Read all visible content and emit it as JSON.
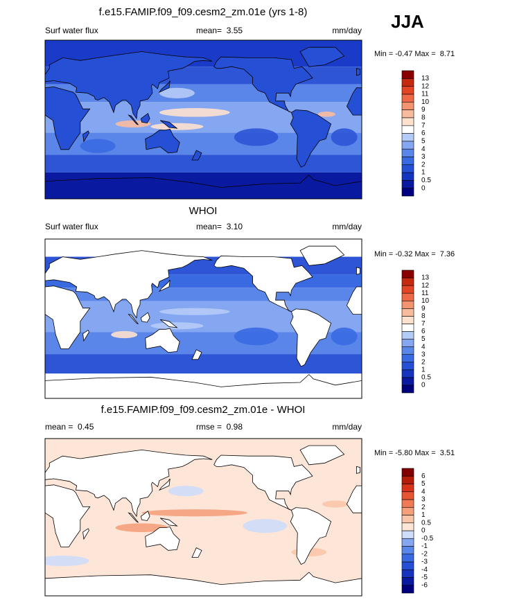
{
  "header": {
    "season": "JJA"
  },
  "panels": [
    {
      "title": "f.e15.FAMIP.f09_f09.cesm2_zm.01e (yrs 1-8)",
      "left_label": "Surf water flux",
      "center_label": "mean=  3.55",
      "right_label": "mm/day",
      "range_text": "Min = -0.47 Max =  8.71",
      "colorbar": {
        "levels": [
          0,
          0.5,
          1,
          2,
          3,
          4,
          5,
          6,
          7,
          8,
          9,
          10,
          11,
          12,
          13
        ],
        "colors": [
          "#00007f",
          "#0a1aa0",
          "#1535c0",
          "#2550d6",
          "#3a6ae2",
          "#5a86ea",
          "#85a6f0",
          "#b5cbf7",
          "#ffffff",
          "#fde1cf",
          "#f9bb9e",
          "#f4936f",
          "#ee6a47",
          "#e34423",
          "#c52a0e",
          "#8a0000"
        ]
      }
    },
    {
      "title": "WHOI",
      "left_label": "Surf water flux",
      "center_label": "mean=  3.10",
      "right_label": "mm/day",
      "range_text": "Min = -0.32 Max =  7.36",
      "colorbar": {
        "levels": [
          0,
          0.5,
          1,
          2,
          3,
          4,
          5,
          6,
          7,
          8,
          9,
          10,
          11,
          12,
          13
        ],
        "colors": [
          "#00007f",
          "#0a1aa0",
          "#1535c0",
          "#2550d6",
          "#3a6ae2",
          "#5a86ea",
          "#85a6f0",
          "#b5cbf7",
          "#ffffff",
          "#fde1cf",
          "#f9bb9e",
          "#f4936f",
          "#ee6a47",
          "#e34423",
          "#c52a0e",
          "#8a0000"
        ]
      }
    },
    {
      "title": "f.e15.FAMIP.f09_f09.cesm2_zm.01e - WHOI",
      "left_label": "mean =  0.45",
      "center_label": "rmse =  0.98",
      "right_label": "mm/day",
      "range_text": "Min = -5.80 Max =  3.51",
      "colorbar": {
        "levels": [
          -6,
          -5,
          -4,
          -3,
          -2,
          -1,
          -0.5,
          0,
          0.5,
          1,
          2,
          3,
          4,
          5,
          6
        ],
        "colors": [
          "#00007f",
          "#0a1aa0",
          "#1535c0",
          "#2550d6",
          "#3a6ae2",
          "#5a86ea",
          "#85a6f0",
          "#cfdcfa",
          "#fde6d8",
          "#f9c5aa",
          "#f5a07c",
          "#f07a55",
          "#e85533",
          "#d7341a",
          "#b51d08",
          "#800000"
        ]
      }
    }
  ]
}
